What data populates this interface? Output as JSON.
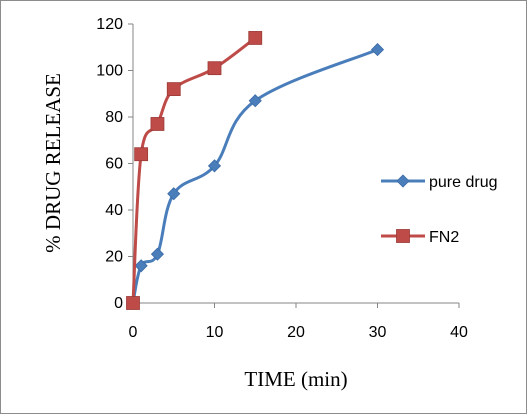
{
  "chart_data": {
    "type": "line",
    "xlabel": "TIME (min)",
    "ylabel": "% DRUG RELEASE",
    "xlim": [
      0,
      40
    ],
    "ylim": [
      0,
      120
    ],
    "xticks": [
      "0",
      "10",
      "20",
      "30",
      "40"
    ],
    "yticks": [
      "0",
      "20",
      "40",
      "60",
      "80",
      "100",
      "120"
    ],
    "grid": false,
    "legend_position": "right",
    "series": [
      {
        "name": "pure drug",
        "color": "#4a7ebb",
        "marker": "diamond",
        "x": [
          0,
          1,
          3,
          5,
          10,
          15,
          30
        ],
        "y": [
          0,
          16,
          21,
          47,
          59,
          87,
          109
        ]
      },
      {
        "name": "FN2",
        "color": "#be4b48",
        "marker": "square",
        "x": [
          0,
          1,
          3,
          5,
          10,
          15
        ],
        "y": [
          0,
          64,
          77,
          92,
          101,
          114
        ]
      }
    ]
  }
}
